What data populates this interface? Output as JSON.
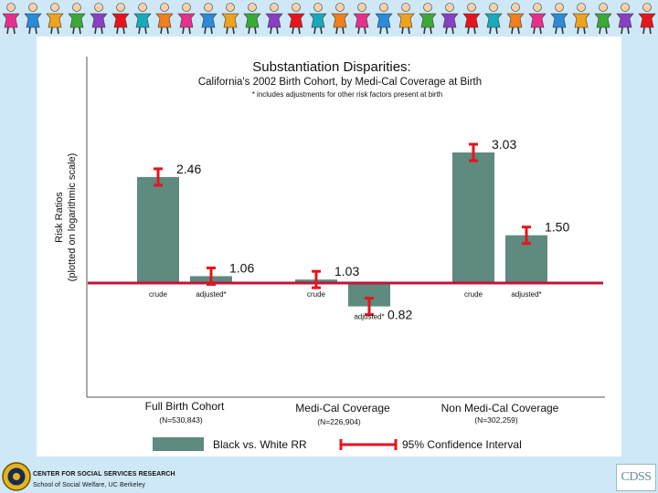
{
  "footer": {
    "line1": "CENTER FOR SOCIAL SERVICES RESEARCH",
    "line2": "School of Social Welfare, UC Berkeley",
    "logo_text": "CDSS"
  },
  "colors": {
    "bar": "#5e8a7f",
    "ci": "#e8141c",
    "baseline": "#c0143c",
    "background": "#cfe8f7"
  },
  "chart_data": {
    "type": "bar",
    "title": "Substantiation Disparities:",
    "subtitle": "California's 2002 Birth Cohort, by Medi-Cal Coverage at Birth",
    "note": "* includes adjustments for other risk factors present at birth",
    "ylabel_line1": "Risk Ratios",
    "ylabel_line2": "(plotted on logarithmic scale)",
    "y_scale": "log",
    "baseline": 1.0,
    "groups": [
      {
        "label": "Full Birth Cohort",
        "n": "(N=530,843)",
        "bars": [
          {
            "label": "crude",
            "value": 2.46,
            "value_label": "2.46"
          },
          {
            "label": "adjusted*",
            "value": 1.06,
            "value_label": "1.06"
          }
        ]
      },
      {
        "label": "Medi-Cal Coverage",
        "n": "(N=226,904)",
        "bars": [
          {
            "label": "crude",
            "value": 1.03,
            "value_label": "1.03"
          },
          {
            "label": "adjusted*",
            "value": 0.82,
            "value_label": "0.82"
          }
        ]
      },
      {
        "label": "Non Medi-Cal Coverage",
        "n": "(N=302,259)",
        "bars": [
          {
            "label": "crude",
            "value": 3.03,
            "value_label": "3.03"
          },
          {
            "label": "adjusted*",
            "value": 1.5,
            "value_label": "1.50"
          }
        ]
      }
    ],
    "legend": {
      "placement": "bottom",
      "bar_label": "Black vs. White RR",
      "ci_label": "95% Confidence Interval"
    }
  }
}
